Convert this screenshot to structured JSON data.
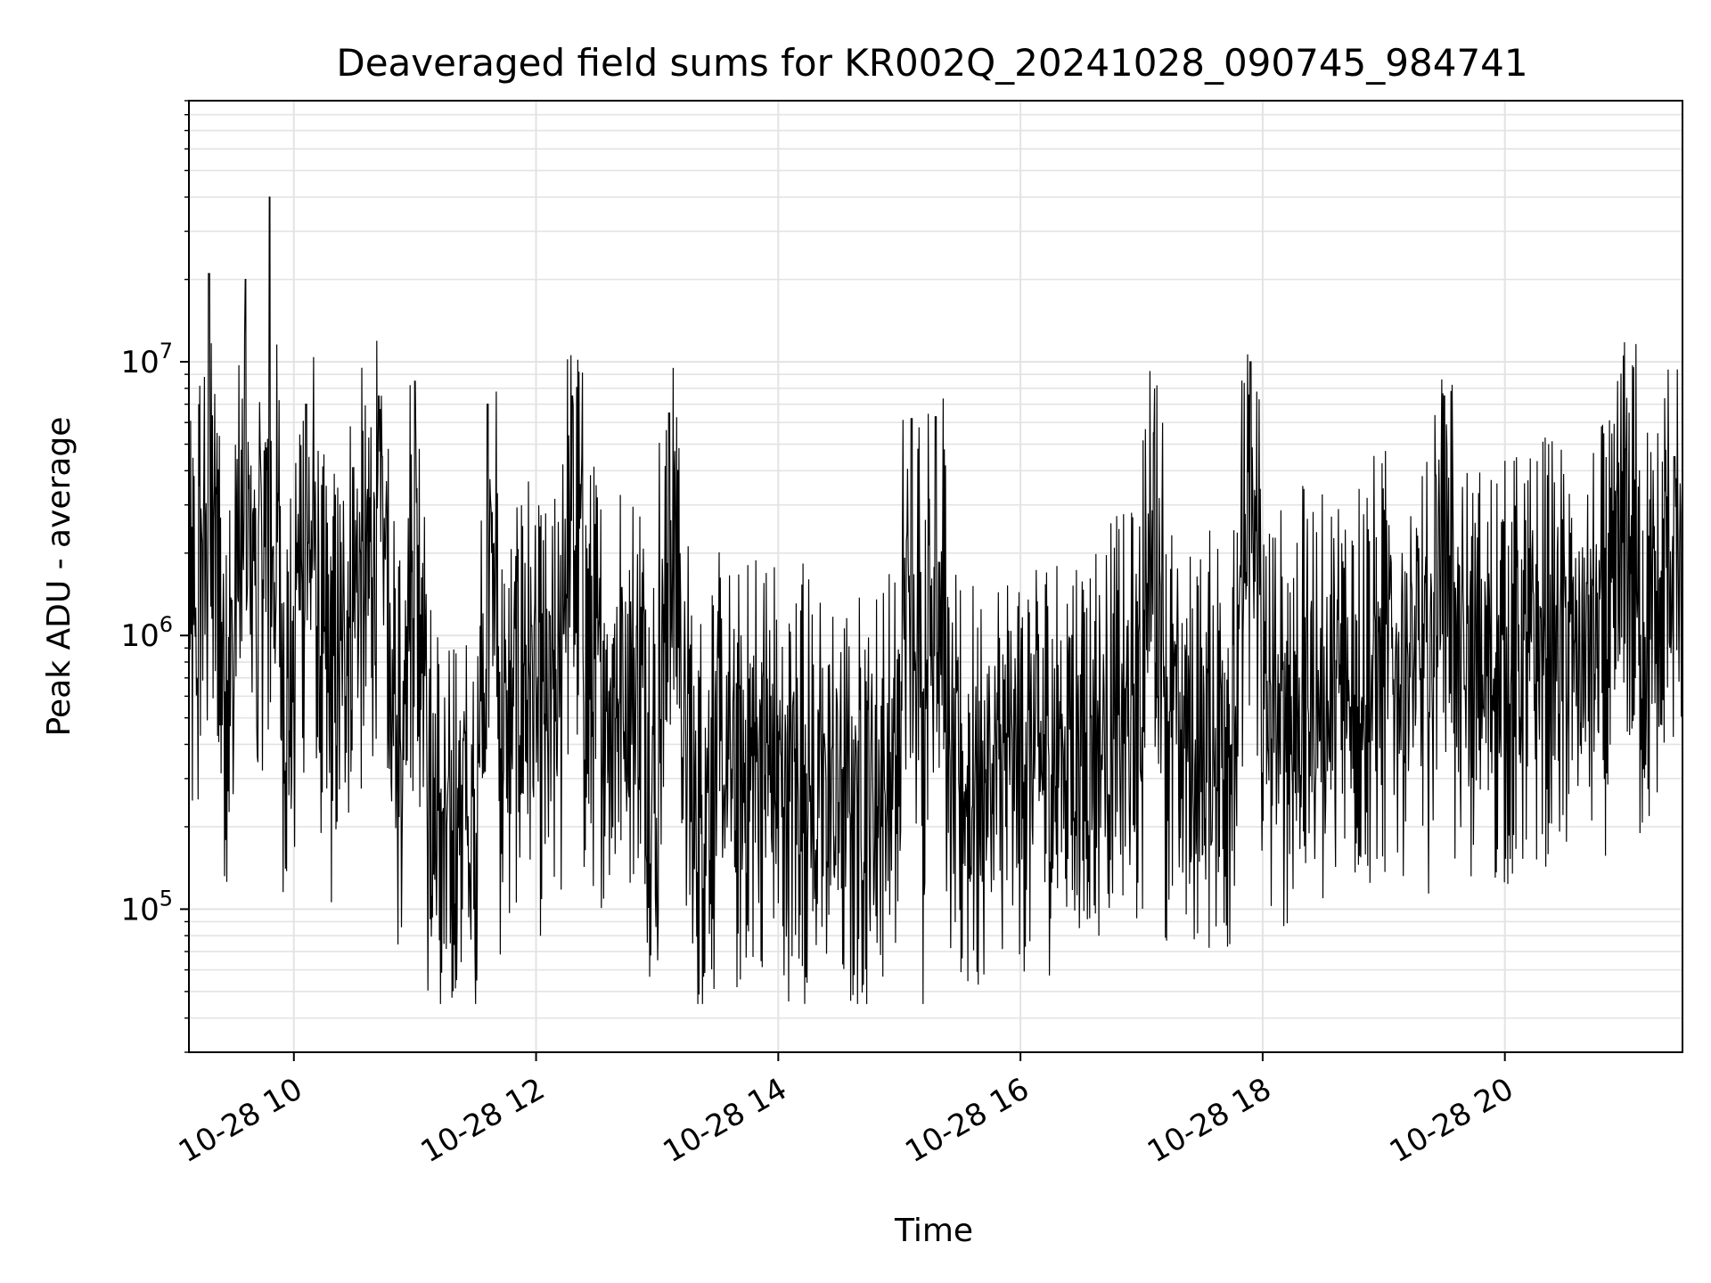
{
  "chart_data": {
    "type": "line",
    "title": "Deaveraged field sums for KR002Q_20241028_090745_984741",
    "xlabel": "Time",
    "ylabel": "Peak ADU - average",
    "x_range": [
      "10-28 09:08",
      "10-28 21:28"
    ],
    "y_range": [
      30000,
      90000000
    ],
    "yscale": "log",
    "grid": true,
    "x_ticks": [
      {
        "label": "10-28 10",
        "hour": 10
      },
      {
        "label": "10-28 12",
        "hour": 12
      },
      {
        "label": "10-28 14",
        "hour": 14
      },
      {
        "label": "10-28 16",
        "hour": 16
      },
      {
        "label": "10-28 18",
        "hour": 18
      },
      {
        "label": "10-28 20",
        "hour": 20
      }
    ],
    "y_ticks": [
      {
        "base": "10",
        "exp": "5",
        "value": 100000
      },
      {
        "base": "10",
        "exp": "6",
        "value": 1000000
      },
      {
        "base": "10",
        "exp": "7",
        "value": 10000000
      }
    ],
    "line_color": "#000000",
    "series": [
      {
        "x_hours": [
          9.13,
          9.2,
          9.3,
          9.4,
          9.5,
          9.6,
          9.7,
          9.8,
          9.9,
          10.0,
          10.1,
          10.2,
          10.3,
          10.4,
          10.5,
          10.6,
          10.7,
          10.8,
          10.9,
          11.0,
          11.1,
          11.2,
          11.3,
          11.4,
          11.5,
          11.6,
          11.7,
          11.8,
          11.9,
          12.0,
          12.1,
          12.2,
          12.3,
          12.4,
          12.5,
          12.6,
          12.7,
          12.8,
          12.9,
          13.0,
          13.1,
          13.2,
          13.3,
          13.4,
          13.5,
          13.6,
          13.7,
          13.8,
          13.9,
          14.0,
          14.1,
          14.2,
          14.3,
          14.4,
          14.5,
          14.6,
          14.7,
          14.8,
          14.9,
          15.0,
          15.1,
          15.2,
          15.3,
          15.4,
          15.5,
          15.6,
          15.7,
          15.8,
          15.9,
          16.0,
          16.1,
          16.2,
          16.3,
          16.4,
          16.5,
          16.6,
          16.7,
          16.8,
          16.9,
          17.0,
          17.1,
          17.2,
          17.3,
          17.4,
          17.5,
          17.6,
          17.7,
          17.8,
          17.9,
          18.0,
          18.1,
          18.2,
          18.3,
          18.4,
          18.5,
          18.6,
          18.7,
          18.8,
          18.9,
          19.0,
          19.1,
          19.2,
          19.3,
          19.4,
          19.5,
          19.6,
          19.7,
          19.8,
          19.9,
          20.0,
          20.1,
          20.2,
          20.3,
          20.4,
          20.5,
          20.6,
          20.7,
          20.8,
          20.9,
          21.0,
          21.1,
          21.2,
          21.3,
          21.4,
          21.47
        ],
        "peak_values": [
          1200000,
          1000000,
          21000000,
          1100000,
          700000,
          20000000,
          1000000,
          40000000,
          800000,
          600000,
          7000000,
          1000000,
          700000,
          900000,
          2000000,
          1500000,
          7500000,
          600000,
          400000,
          8500000,
          300000,
          200000,
          150000,
          400000,
          100000,
          7000000,
          450000,
          500000,
          1000000,
          600000,
          500000,
          700000,
          7500000,
          800000,
          800000,
          600000,
          800000,
          700000,
          800000,
          200000,
          6500000,
          900000,
          200000,
          300000,
          400000,
          350000,
          300000,
          400000,
          450000,
          300000,
          300000,
          400000,
          250000,
          300000,
          300000,
          250000,
          300000,
          300000,
          350000,
          300000,
          6200000,
          300000,
          6300000,
          300000,
          300000,
          300000,
          300000,
          350000,
          350000,
          400000,
          400000,
          400000,
          400000,
          500000,
          400000,
          500000,
          500000,
          500000,
          500000,
          600000,
          5500000,
          500000,
          500000,
          400000,
          400000,
          500000,
          500000,
          500000,
          10000000,
          600000,
          500000,
          600000,
          600000,
          700000,
          600000,
          700000,
          700000,
          800000,
          800000,
          900000,
          900000,
          900000,
          800000,
          800000,
          7500000,
          800000,
          800000,
          800000,
          900000,
          800000,
          900000,
          900000,
          1000000,
          1000000,
          1000000,
          900000,
          1000000,
          1100000,
          1100000,
          4800000,
          1100000,
          1200000,
          1200000,
          4500000,
          700000
        ]
      }
    ]
  }
}
